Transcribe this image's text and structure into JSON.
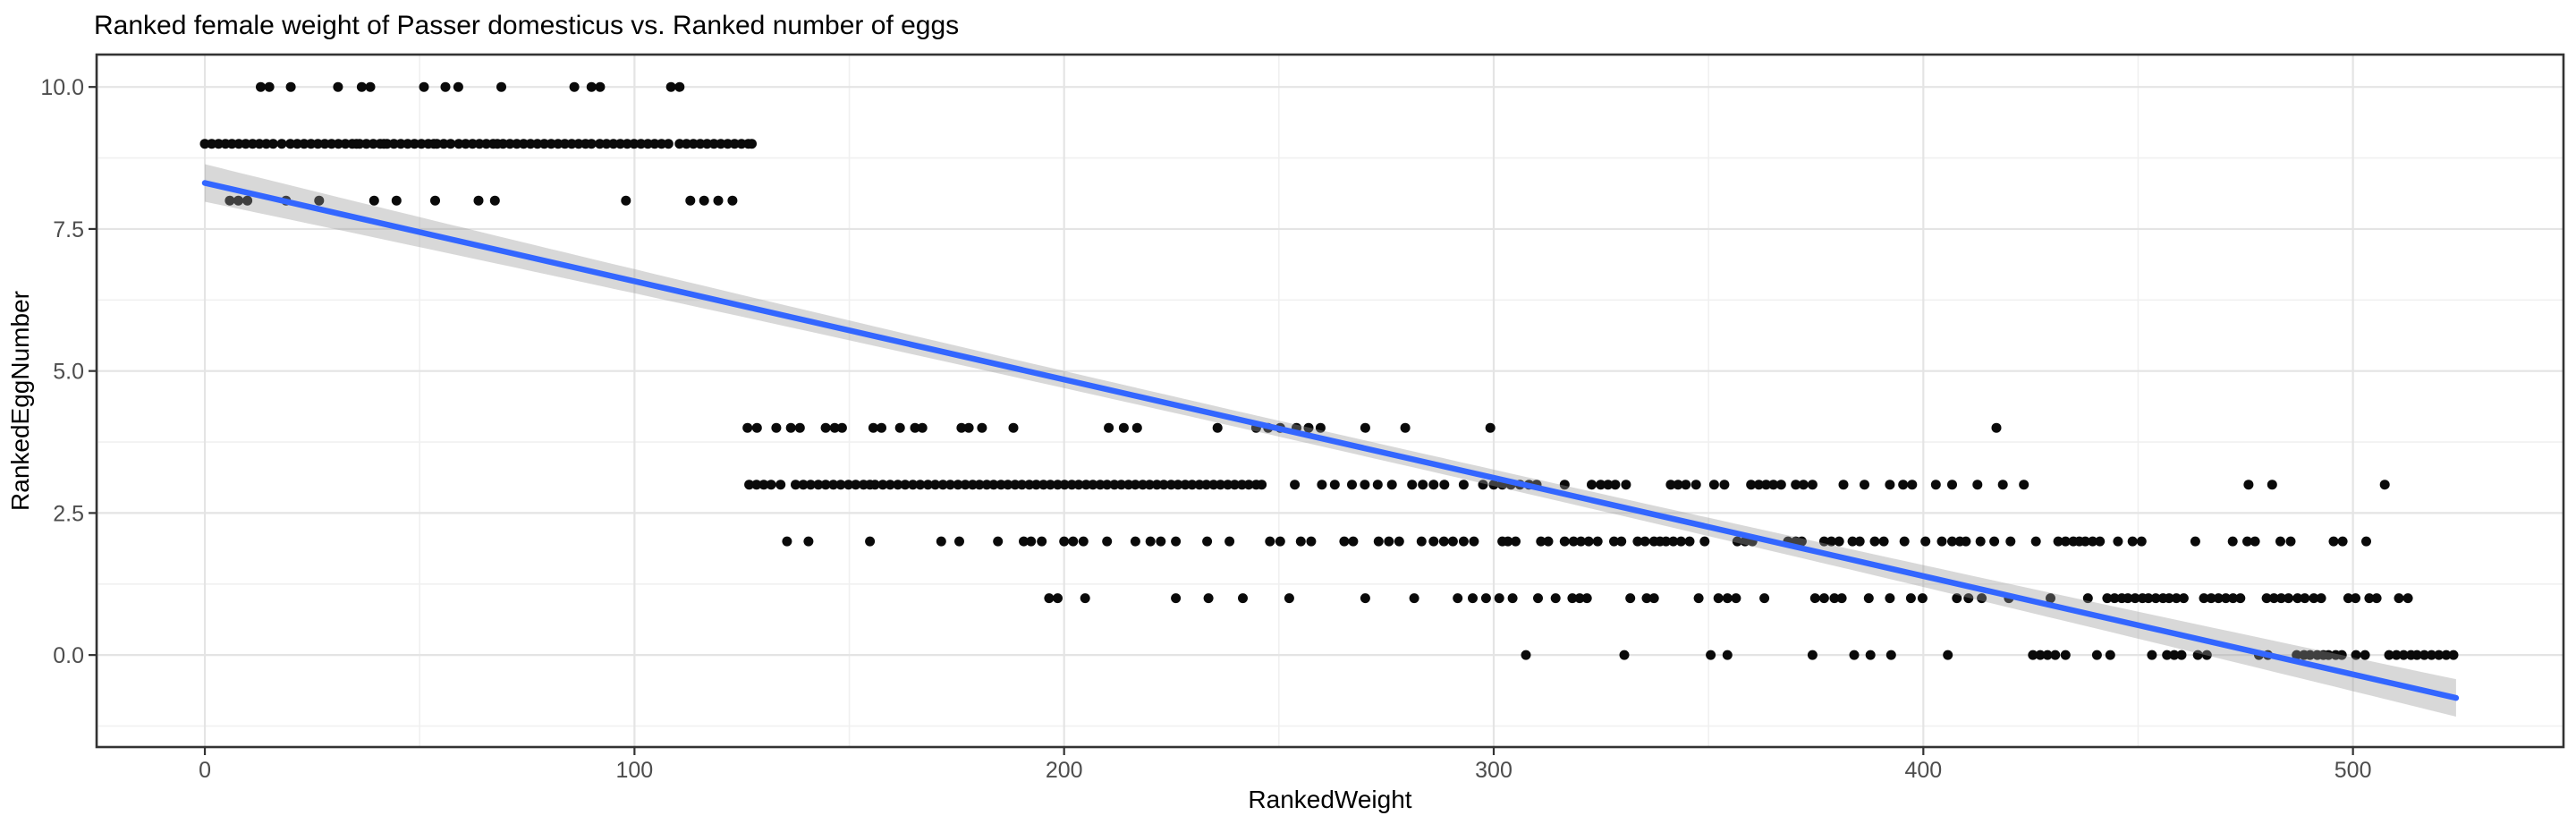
{
  "chart_data": {
    "type": "scatter",
    "title": "Ranked female weight of Passer domesticus vs. Ranked number of eggs",
    "xlabel": "RankedWeight",
    "ylabel": "RankedEggNumber",
    "legend": "none",
    "grid": "on",
    "xlim": [
      -25.2,
      549.0
    ],
    "ylim": [
      -1.62,
      10.57
    ],
    "x_ticks": [
      {
        "value": 0,
        "label": "0"
      },
      {
        "value": 100,
        "label": "100"
      },
      {
        "value": 200,
        "label": "200"
      },
      {
        "value": 300,
        "label": "300"
      },
      {
        "value": 400,
        "label": "400"
      },
      {
        "value": 500,
        "label": "500"
      }
    ],
    "y_ticks": [
      {
        "value": 10,
        "label": "10.0"
      },
      {
        "value": 7.5,
        "label": "7.5"
      },
      {
        "value": 5,
        "label": "5.0"
      },
      {
        "value": 2.5,
        "label": "2.5"
      },
      {
        "value": 0,
        "label": "0.0"
      }
    ],
    "x_minor": [
      -25,
      50,
      150,
      250,
      350,
      450
    ],
    "y_minor": [
      -1.25,
      1.25,
      3.75,
      6.25,
      8.75
    ],
    "colors": {
      "point": "#0a0a0a",
      "smooth_line": "#3366FF",
      "ci_ribbon": "#999999",
      "ci_opacity": 0.38,
      "grid_major": "#e4e4e4",
      "grid_minor": "#f0f0f0",
      "panel_border": "#333333",
      "tick_mark": "#333333",
      "tick_text": "#4d4d4d",
      "title_text": "#000000",
      "panel_bg": "#ffffff"
    },
    "smooth": {
      "intercept": 8.31,
      "slope": -0.0173,
      "x_start": 0,
      "x_end": 524,
      "ci_half_width_min": 0.14,
      "ci_half_width_edge": 0.33,
      "ci_center_x": 262
    },
    "points": [
      {
        "y": 10,
        "x": [
          13,
          15,
          20,
          31,
          36.5,
          38.5,
          51,
          56,
          59,
          69,
          86,
          90,
          92,
          108.5,
          110.5
        ]
      },
      {
        "y": 9,
        "x": [
          0,
          1.6,
          3.2,
          4.8,
          6.3,
          7.9,
          9.5,
          11.1,
          12.7,
          14.3,
          15.9,
          17.9,
          19.9,
          21.5,
          23.1,
          24.7,
          26.3,
          27.9,
          29.5,
          31.1,
          32.7,
          34.3,
          35.3,
          36,
          37.6,
          39.2,
          40.8,
          41.7,
          42.4,
          44,
          45.6,
          47.2,
          48.8,
          50.4,
          52,
          53.3,
          54,
          55.6,
          57.2,
          59.1,
          60.7,
          62.3,
          63.9,
          65.5,
          67.1,
          68.1,
          69.4,
          71,
          72.6,
          74.2,
          75.8,
          77.4,
          79,
          80.6,
          82.2,
          83.8,
          85.4,
          87,
          88.6,
          90,
          91.9,
          93.5,
          95.1,
          96.7,
          98.3,
          99.9,
          101.5,
          103.1,
          104.7,
          106.3,
          107.9,
          110.5,
          112.1,
          113.7,
          115.3,
          116.9,
          118.5,
          120.1,
          121.7,
          123.3,
          124.9,
          126.5,
          127.3
        ]
      },
      {
        "y": 8,
        "x": [
          5.8,
          7.8,
          9.9,
          18.9,
          26.6,
          39.4,
          44.6,
          53.6,
          63.7,
          67.5,
          98,
          113,
          116.2,
          119.5,
          122.8
        ]
      },
      {
        "y": 4,
        "x": [
          126.3,
          128.5,
          133,
          136.4,
          138.5,
          144.5,
          146.6,
          148.3,
          155.6,
          157.5,
          161.8,
          165.3,
          167,
          176.1,
          177.8,
          180.9,
          188.2,
          210.4,
          213.9,
          217,
          235.7,
          244.7,
          247.5,
          250.3,
          254.1,
          256.9,
          259.7,
          270.1,
          279.4,
          299.2,
          417
        ]
      },
      {
        "y": 3,
        "x": [
          126.7,
          128.4,
          130.1,
          131.8,
          134,
          137.5,
          139.3,
          141,
          142.8,
          144.5,
          146.3,
          148,
          149.8,
          151.5,
          153.3,
          154.8,
          156,
          157.8,
          159.5,
          161.3,
          163,
          164.8,
          166.5,
          168.3,
          170,
          171.8,
          173.5,
          175.3,
          177,
          178.7,
          180.3,
          182,
          183.6,
          185.3,
          186.9,
          188.6,
          190.2,
          191.9,
          193.5,
          195.2,
          196.8,
          198.5,
          200.1,
          201.8,
          203.4,
          205.1,
          206.7,
          208.4,
          210,
          211.7,
          213.3,
          215,
          216.6,
          218.3,
          219.9,
          221.6,
          223.2,
          224.9,
          226.5,
          228.2,
          229.8,
          231.5,
          233.1,
          234.8,
          236.4,
          238.1,
          239.7,
          241.4,
          243,
          244.7,
          246,
          253.7,
          260,
          263,
          267,
          270,
          273,
          276.3,
          281,
          283.5,
          286,
          288.5,
          293,
          297.5,
          300,
          302,
          304,
          306.1,
          308.2,
          310,
          316.5,
          322.8,
          324.9,
          326.6,
          328.3,
          330.8,
          341.2,
          342.9,
          344.7,
          347.1,
          351.3,
          353.7,
          359.9,
          361.7,
          363.4,
          365.1,
          366.9,
          370.3,
          372.1,
          374.2,
          381.4,
          386.3,
          392.2,
          395.3,
          397.4,
          402.9,
          406.7,
          412.6,
          418.5,
          423.4,
          475.7,
          481.2,
          507.4
        ]
      },
      {
        "y": 2,
        "x": [
          135.5,
          140.5,
          154.8,
          171.4,
          175.6,
          184.6,
          190.6,
          192.3,
          194.8,
          200,
          202.1,
          204.5,
          210,
          216.6,
          220.1,
          222.5,
          226,
          233.3,
          238.5,
          247.9,
          250.3,
          255.1,
          257.5,
          265.2,
          267.3,
          273.2,
          275.6,
          278,
          283.2,
          286,
          288.4,
          290.5,
          293,
          295.4,
          302,
          303.3,
          305.1,
          311,
          312.7,
          316.5,
          318.6,
          320.3,
          322.1,
          324.2,
          328,
          329.7,
          333.5,
          335.2,
          337.3,
          338.7,
          340.1,
          341.8,
          343.6,
          345.6,
          349.1,
          356.7,
          358.5,
          360.2,
          368.5,
          370.3,
          371.7,
          376.9,
          378.6,
          380.4,
          383.5,
          385.2,
          388.7,
          390.8,
          395.6,
          400.5,
          404.3,
          406.7,
          408.5,
          409.9,
          413.3,
          416.5,
          420.3,
          426.2,
          431.4,
          433.1,
          434.9,
          436.3,
          437.7,
          439.4,
          441.1,
          445.3,
          448.7,
          450.8,
          463.3,
          472,
          475.4,
          477.2,
          483.1,
          485.5,
          495.5,
          497.6,
          503.1
        ]
      },
      {
        "y": 1,
        "x": [
          196.5,
          198.5,
          204.9,
          226,
          233.6,
          241.6,
          252.4,
          270.1,
          281.5,
          291.6,
          295.1,
          298.2,
          301.3,
          304.4,
          310.3,
          314.4,
          318.3,
          320,
          321.7,
          331.8,
          335.6,
          337.3,
          347.7,
          352.3,
          354.4,
          356.4,
          363,
          374.8,
          376.9,
          379.3,
          381,
          387.3,
          392.2,
          397.1,
          399.8,
          407.8,
          410.5,
          413.6,
          419.9,
          429.6,
          438.3,
          442.8,
          444.5,
          446.2,
          447.6,
          449.3,
          451,
          452.4,
          454.1,
          455.8,
          457.2,
          458.9,
          460.6,
          465.3,
          467,
          468.7,
          470.4,
          472.1,
          473.8,
          479.9,
          481.6,
          483.3,
          485,
          487.1,
          488.8,
          490.9,
          492.6,
          498.9,
          500.6,
          503.8,
          505.5,
          510.7,
          512.8
        ]
      },
      {
        "y": 0,
        "x": [
          307.5,
          330.4,
          350.5,
          354.4,
          374.2,
          383.9,
          387.7,
          392.5,
          405.7,
          425.5,
          427.2,
          428.9,
          430.7,
          433.1,
          440.4,
          443.5,
          453.2,
          456.7,
          458.4,
          460.1,
          463.9,
          466,
          478.1,
          480.2,
          486.9,
          488.6,
          490,
          491.7,
          493.1,
          494.3,
          496,
          497.4,
          500.7,
          502.8,
          508.4,
          510.1,
          511.8,
          513.5,
          514.9,
          516.6,
          518.3,
          520,
          521.7,
          523.4
        ]
      }
    ]
  }
}
